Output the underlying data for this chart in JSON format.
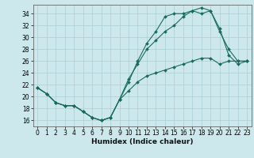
{
  "xlabel": "Humidex (Indice chaleur)",
  "bg_color": "#cce8ec",
  "line_color": "#1a6b5e",
  "grid_color": "#aacdd4",
  "xlim": [
    -0.5,
    23.5
  ],
  "ylim": [
    15.0,
    35.5
  ],
  "yticks": [
    16,
    18,
    20,
    22,
    24,
    26,
    28,
    30,
    32,
    34
  ],
  "xticks": [
    0,
    1,
    2,
    3,
    4,
    5,
    6,
    7,
    8,
    9,
    10,
    11,
    12,
    13,
    14,
    15,
    16,
    17,
    18,
    19,
    20,
    21,
    22,
    23
  ],
  "line1_x": [
    0,
    1,
    2,
    3,
    4,
    5,
    6,
    7,
    8,
    9,
    10,
    11,
    12,
    13,
    14,
    15,
    16,
    17,
    18,
    19,
    20,
    21,
    22,
    23
  ],
  "line1_y": [
    21.5,
    20.5,
    19.0,
    18.5,
    18.5,
    17.5,
    16.5,
    16.0,
    16.5,
    19.5,
    22.5,
    26.0,
    29.0,
    31.0,
    33.5,
    34.0,
    34.0,
    34.5,
    35.0,
    34.5,
    31.0,
    28.0,
    26.0,
    26.0
  ],
  "line2_x": [
    0,
    1,
    2,
    3,
    4,
    5,
    6,
    7,
    8,
    9,
    10,
    11,
    12,
    13,
    14,
    15,
    16,
    17,
    18,
    19,
    20,
    21,
    22,
    23
  ],
  "line2_y": [
    21.5,
    20.5,
    19.0,
    18.5,
    18.5,
    17.5,
    16.5,
    16.0,
    16.5,
    19.5,
    23.0,
    25.5,
    28.0,
    29.5,
    31.0,
    32.0,
    33.5,
    34.5,
    34.0,
    34.5,
    31.5,
    27.0,
    25.5,
    26.0
  ],
  "line3_x": [
    0,
    1,
    2,
    3,
    4,
    5,
    6,
    7,
    8,
    9,
    10,
    11,
    12,
    13,
    14,
    15,
    16,
    17,
    18,
    19,
    20,
    21,
    22,
    23
  ],
  "line3_y": [
    21.5,
    20.5,
    19.0,
    18.5,
    18.5,
    17.5,
    16.5,
    16.0,
    16.5,
    19.5,
    21.0,
    22.5,
    23.5,
    24.0,
    24.5,
    25.0,
    25.5,
    26.0,
    26.5,
    26.5,
    25.5,
    26.0,
    26.0,
    26.0
  ],
  "xlabel_fontsize": 6.5,
  "tick_fontsize": 5.5,
  "spine_color": "#666666"
}
